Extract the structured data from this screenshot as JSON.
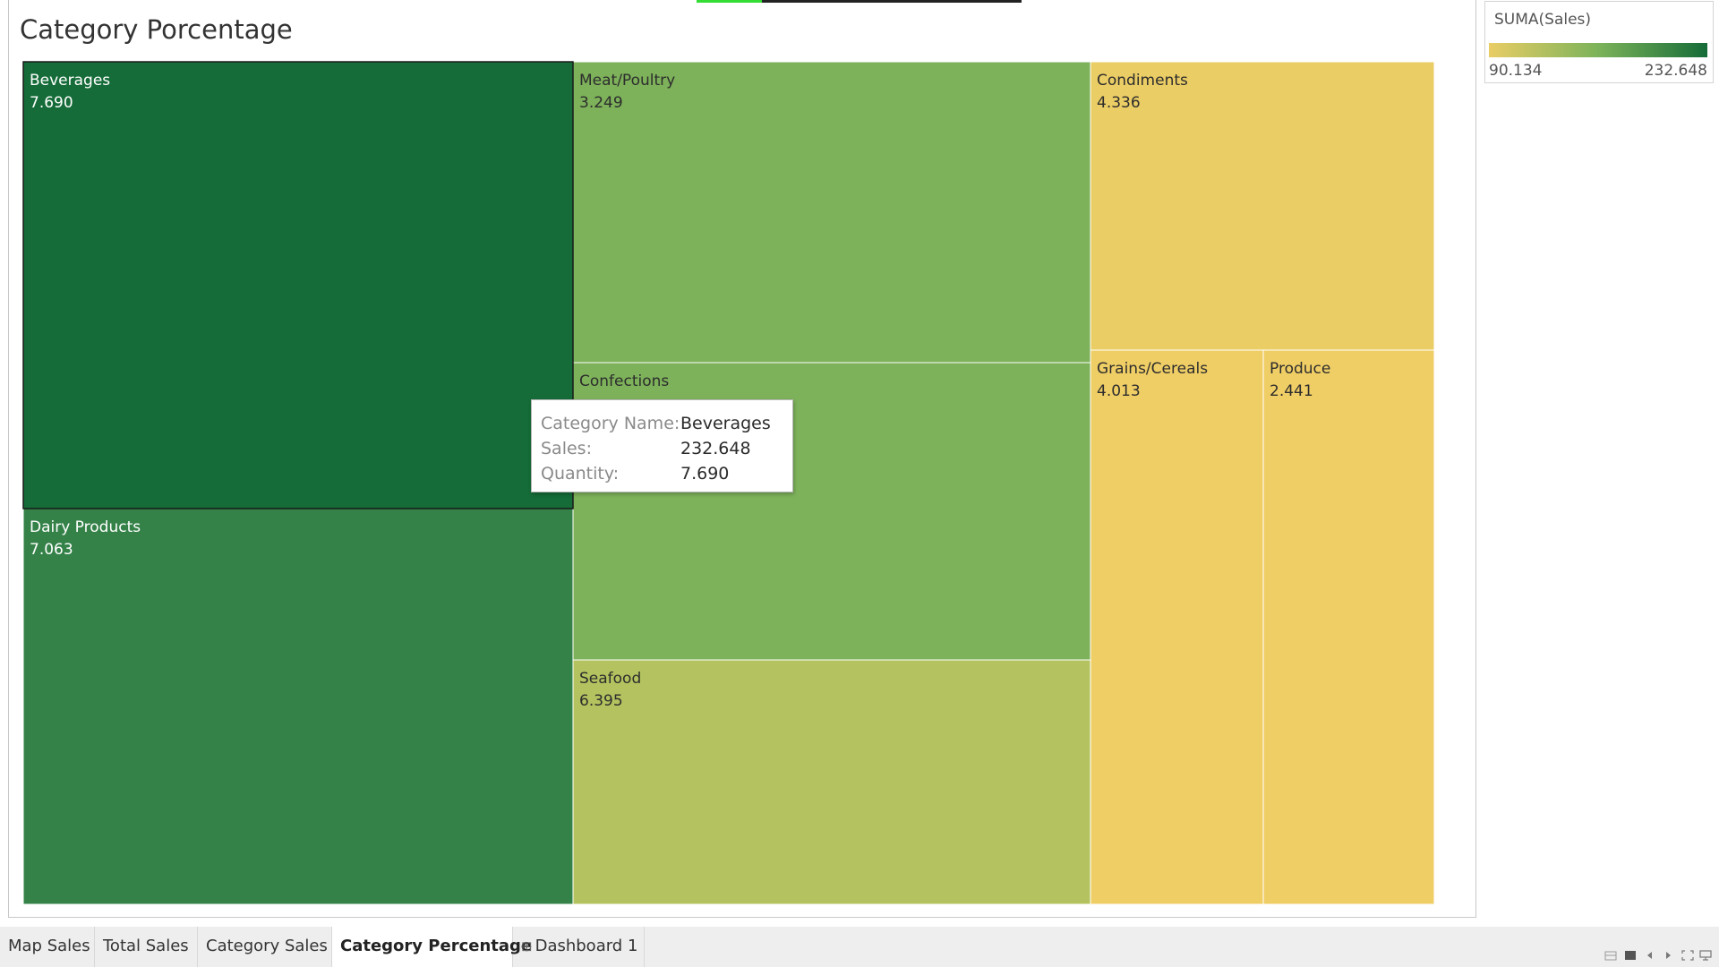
{
  "page_title": "Category Porcentage",
  "chart_data": {
    "type": "treemap",
    "title": "Category Porcentage",
    "label_field": "Category Name",
    "size_field": "Quantity",
    "color_field": "SUMA(Sales)",
    "items": [
      {
        "name": "Beverages",
        "label_value": "7.690",
        "color": "#156c38",
        "text_color": "#ffffff",
        "highlighted": true
      },
      {
        "name": "Dairy Products",
        "label_value": "7.063",
        "color": "#348248",
        "text_color": "#ffffff"
      },
      {
        "name": "Meat/Poultry",
        "label_value": "3.249",
        "color": "#7db25a",
        "text_color": "#2d2d2d"
      },
      {
        "name": "Confections",
        "label_value": "",
        "color": "#7db25a",
        "text_color": "#2d2d2d"
      },
      {
        "name": "Seafood",
        "label_value": "6.395",
        "color": "#b4c35f",
        "text_color": "#2d2d2d"
      },
      {
        "name": "Condiments",
        "label_value": "4.336",
        "color": "#ebcd65",
        "text_color": "#2d2d2d"
      },
      {
        "name": "Grains/Cereals",
        "label_value": "4.013",
        "color": "#f0ce66",
        "text_color": "#2d2d2d"
      },
      {
        "name": "Produce",
        "label_value": "2.441",
        "color": "#f0ce66",
        "text_color": "#2d2d2d"
      }
    ]
  },
  "tooltip": {
    "rows": [
      {
        "key": "Category Name:",
        "value": "Beverages"
      },
      {
        "key": "Sales:",
        "value": "232.648"
      },
      {
        "key": "Quantity:",
        "value": "7.690"
      }
    ]
  },
  "legend": {
    "title": "SUMA(Sales)",
    "min": "90.134",
    "max": "232.648",
    "colors": [
      "#e9cd65",
      "#7cb35a",
      "#156c38"
    ]
  },
  "tabs": [
    {
      "label": "Map Sales",
      "active": false
    },
    {
      "label": "Total Sales",
      "active": false
    },
    {
      "label": "Category Sales",
      "active": false
    },
    {
      "label": "Category Percentage",
      "active": true
    },
    {
      "label": "Dashboard 1",
      "active": false,
      "icon": "dashboard-grid-icon"
    }
  ],
  "loading_progress": 0.2,
  "nav_controls": [
    "filmstrip-icon",
    "single-view-icon",
    "previous-sheet-icon",
    "next-sheet-icon",
    "fullscreen-icon",
    "presentation-icon"
  ]
}
